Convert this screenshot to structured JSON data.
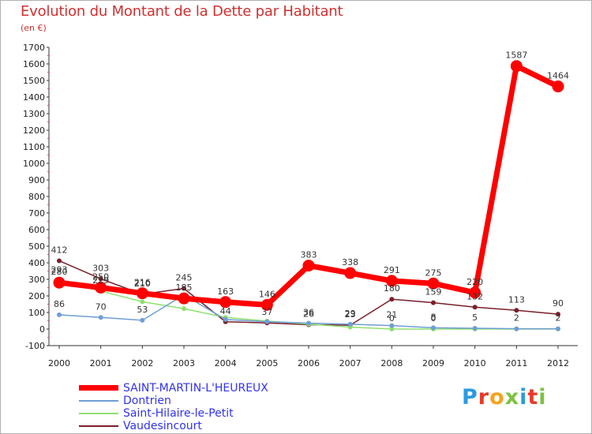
{
  "header": {
    "title": "Evolution du Montant de la Dette par Habitant",
    "subtitle": "(en €)"
  },
  "logo": {
    "text": "Proxiti",
    "letter_colors": [
      "#2a9be0",
      "#e83a2a",
      "#f7a21b",
      "#7cc242",
      "#2a9be0",
      "#e83a2a",
      "#7cc242"
    ]
  },
  "chart_data": {
    "type": "line",
    "title": "Evolution du Montant de la Dette par Habitant",
    "subtitle": "(en €)",
    "xlabel": "",
    "ylabel": "",
    "x": [
      "2000",
      "2001",
      "2002",
      "2003",
      "2004",
      "2005",
      "2006",
      "2007",
      "2008",
      "2009",
      "2010",
      "2011",
      "2012"
    ],
    "ylim": [
      -100,
      1700
    ],
    "yticks": [
      -100,
      0,
      100,
      200,
      300,
      400,
      500,
      600,
      700,
      800,
      900,
      1000,
      1100,
      1200,
      1300,
      1400,
      1500,
      1600,
      1700
    ],
    "grid": false,
    "legend_position": "bottom-left",
    "series": [
      {
        "name": "Vaudesincourt",
        "color": "#7a1f2a",
        "values": [
          412,
          303,
          210,
          245,
          44,
          37,
          26,
          23,
          180,
          159,
          132,
          113,
          90
        ],
        "labels": [
          "412",
          "303",
          "210",
          "245",
          "44",
          "37",
          "26",
          "23",
          "180",
          "159",
          "132",
          "113",
          "90"
        ]
      },
      {
        "name": "Saint-Hilaire-le-Petit",
        "color": "#90e070",
        "values": [
          293,
          229,
          165,
          123,
          70,
          48,
          30,
          12,
          0,
          0,
          0,
          0,
          0
        ],
        "labels": [
          "293",
          "229",
          "",
          "",
          "",
          "",
          "",
          "",
          "0",
          "0",
          "",
          "",
          ""
        ]
      },
      {
        "name": "Dontrien",
        "color": "#6f9ed4",
        "values": [
          86,
          70,
          53,
          206,
          58,
          44,
          36,
          29,
          21,
          8,
          5,
          2,
          2
        ],
        "labels": [
          "86",
          "70",
          "53",
          "",
          "",
          "",
          "36",
          "29",
          "21",
          "8",
          "5",
          "2",
          "2"
        ]
      },
      {
        "name": "SAINT-MARTIN-L'HEUREUX",
        "color": "#ff0000",
        "values": [
          280,
          250,
          216,
          185,
          163,
          146,
          383,
          338,
          291,
          275,
          220,
          1587,
          1464
        ],
        "labels": [
          "280",
          "250",
          "216",
          "185",
          "163",
          "146",
          "383",
          "338",
          "291",
          "275",
          "220",
          "1587",
          "1464"
        ]
      }
    ]
  }
}
